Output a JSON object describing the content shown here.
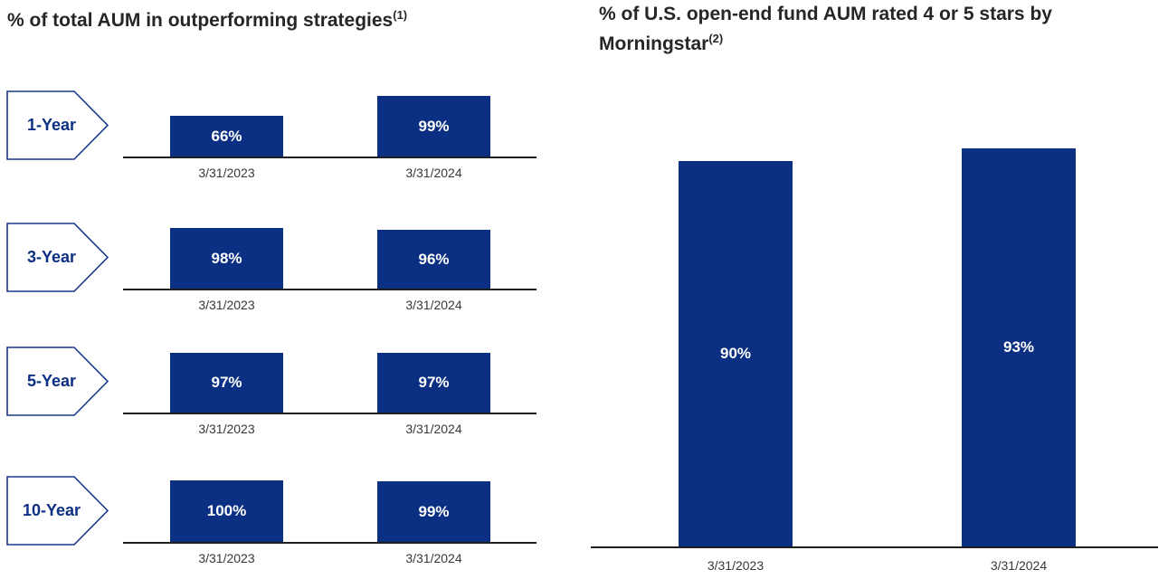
{
  "colors": {
    "background": "#FFFFFF",
    "bar-fill": "#0B2F82",
    "bar-label": "#FFFFFF",
    "badge-border": "#16388C",
    "badge-text": "#0B2F82",
    "axis-line": "#1F1F1F",
    "title-text": "#262626",
    "date-text": "#383838"
  },
  "chart_data": [
    {
      "type": "bar",
      "title": "% of total AUM in outperforming strategies",
      "title_superscript": "(1)",
      "layout": "four stacked mini column charts, one per time period; period shown in arrow-shaped badge at left; value labels centered inside navy bars; dates under baseline",
      "categories": [
        "3/31/2023",
        "3/31/2024"
      ],
      "ylim": [
        0,
        100
      ],
      "value_unit": "%",
      "series": [
        {
          "name": "1-Year",
          "values": [
            66,
            99
          ],
          "labels": [
            "66%",
            "99%"
          ]
        },
        {
          "name": "3-Year",
          "values": [
            98,
            96
          ],
          "labels": [
            "98%",
            "96%"
          ]
        },
        {
          "name": "5-Year",
          "values": [
            97,
            97
          ],
          "labels": [
            "97%",
            "97%"
          ]
        },
        {
          "name": "10-Year",
          "values": [
            100,
            99
          ],
          "labels": [
            "100%",
            "99%"
          ]
        }
      ]
    },
    {
      "type": "bar",
      "title": "% of U.S. open-end fund AUM rated 4 or 5 stars by Morningstar",
      "title_superscript": "(2)",
      "layout": "two tall navy columns on a single baseline; value labels centered inside bars; dates under baseline",
      "categories": [
        "3/31/2023",
        "3/31/2024"
      ],
      "values": [
        90,
        93
      ],
      "labels": [
        "90%",
        "93%"
      ],
      "ylim": [
        0,
        100
      ],
      "value_unit": "%"
    }
  ]
}
